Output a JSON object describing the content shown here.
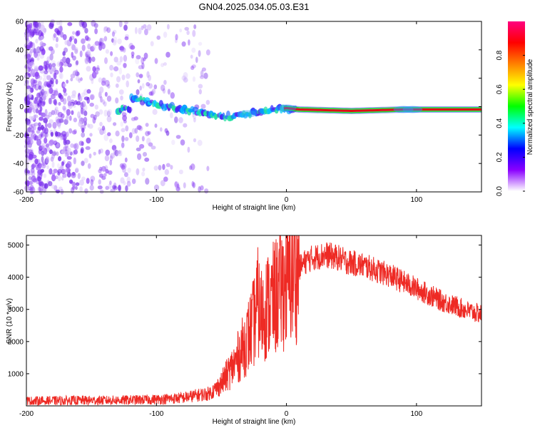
{
  "title": "GN04.2025.034.05.03.E31",
  "colors": {
    "snr_line": "#ee2a24",
    "frame": "#000000",
    "signal_band_red": "#dd1010",
    "signal_band_green": "#22dd22",
    "noise_purple": "#7722ee"
  },
  "chart_data": [
    {
      "type": "heatmap",
      "title": "GN04.2025.034.05.03.E31",
      "xlabel": "Height of straight line (km)",
      "ylabel": "Frequency (Hz)",
      "xlim": [
        -200,
        150
      ],
      "ylim": [
        -60,
        60
      ],
      "x_ticks": [
        "-200",
        "-100",
        "0",
        "100"
      ],
      "y_ticks": [
        "-60",
        "-40",
        "-20",
        "0",
        "20",
        "40",
        "60"
      ],
      "colorbar": {
        "label": "Normalized spectral amplitude",
        "range": [
          0,
          1
        ],
        "ticks": [
          "0.0",
          "0.2",
          "0.4",
          "0.6",
          "0.8"
        ],
        "colormap": [
          "#ffffff",
          "#8a00ff",
          "#0000ff",
          "#00ffff",
          "#00ff00",
          "#ffff00",
          "#ff8000",
          "#ff0000",
          "#ff0080"
        ]
      },
      "signal_band": {
        "description_points": [
          {
            "x": -120,
            "f": 6
          },
          {
            "x": -100,
            "f": 2
          },
          {
            "x": -80,
            "f": -2
          },
          {
            "x": -60,
            "f": -5
          },
          {
            "x": -45,
            "f": -7
          },
          {
            "x": -30,
            "f": -5
          },
          {
            "x": -15,
            "f": -3
          },
          {
            "x": 0,
            "f": -1
          },
          {
            "x": 10,
            "f": -2
          },
          {
            "x": 50,
            "f": -3
          },
          {
            "x": 90,
            "f": -2
          },
          {
            "x": 150,
            "f": -2
          }
        ]
      }
    },
    {
      "type": "line",
      "xlabel": "Height of straight line (km)",
      "ylabel": "SNR (10 * v/v)",
      "xlim": [
        -200,
        150
      ],
      "ylim": [
        0,
        5300
      ],
      "x_ticks": [
        "-200",
        "-100",
        "0",
        "100"
      ],
      "y_ticks": [
        "1000",
        "2000",
        "3000",
        "4000",
        "5000"
      ],
      "series": [
        {
          "x": [
            -200,
            -180,
            -160,
            -140,
            -120,
            -100,
            -80,
            -70,
            -60,
            -55,
            -50,
            -45,
            -40,
            -35,
            -30,
            -25,
            -22,
            -20,
            -15,
            -10,
            -5,
            0,
            5,
            10,
            15,
            20,
            25,
            30,
            35,
            40,
            45,
            50,
            55,
            60,
            70,
            80,
            90,
            100,
            110,
            120,
            130,
            140,
            150
          ],
          "values": [
            150,
            160,
            170,
            170,
            180,
            200,
            250,
            320,
            380,
            500,
            700,
            1000,
            1300,
            1700,
            2100,
            2600,
            3200,
            2800,
            3100,
            3300,
            3600,
            3800,
            4100,
            4300,
            4500,
            4600,
            4650,
            4700,
            4650,
            4600,
            4500,
            4450,
            4400,
            4350,
            4200,
            4050,
            3850,
            3650,
            3450,
            3250,
            3100,
            2950,
            2850
          ]
        }
      ]
    }
  ]
}
